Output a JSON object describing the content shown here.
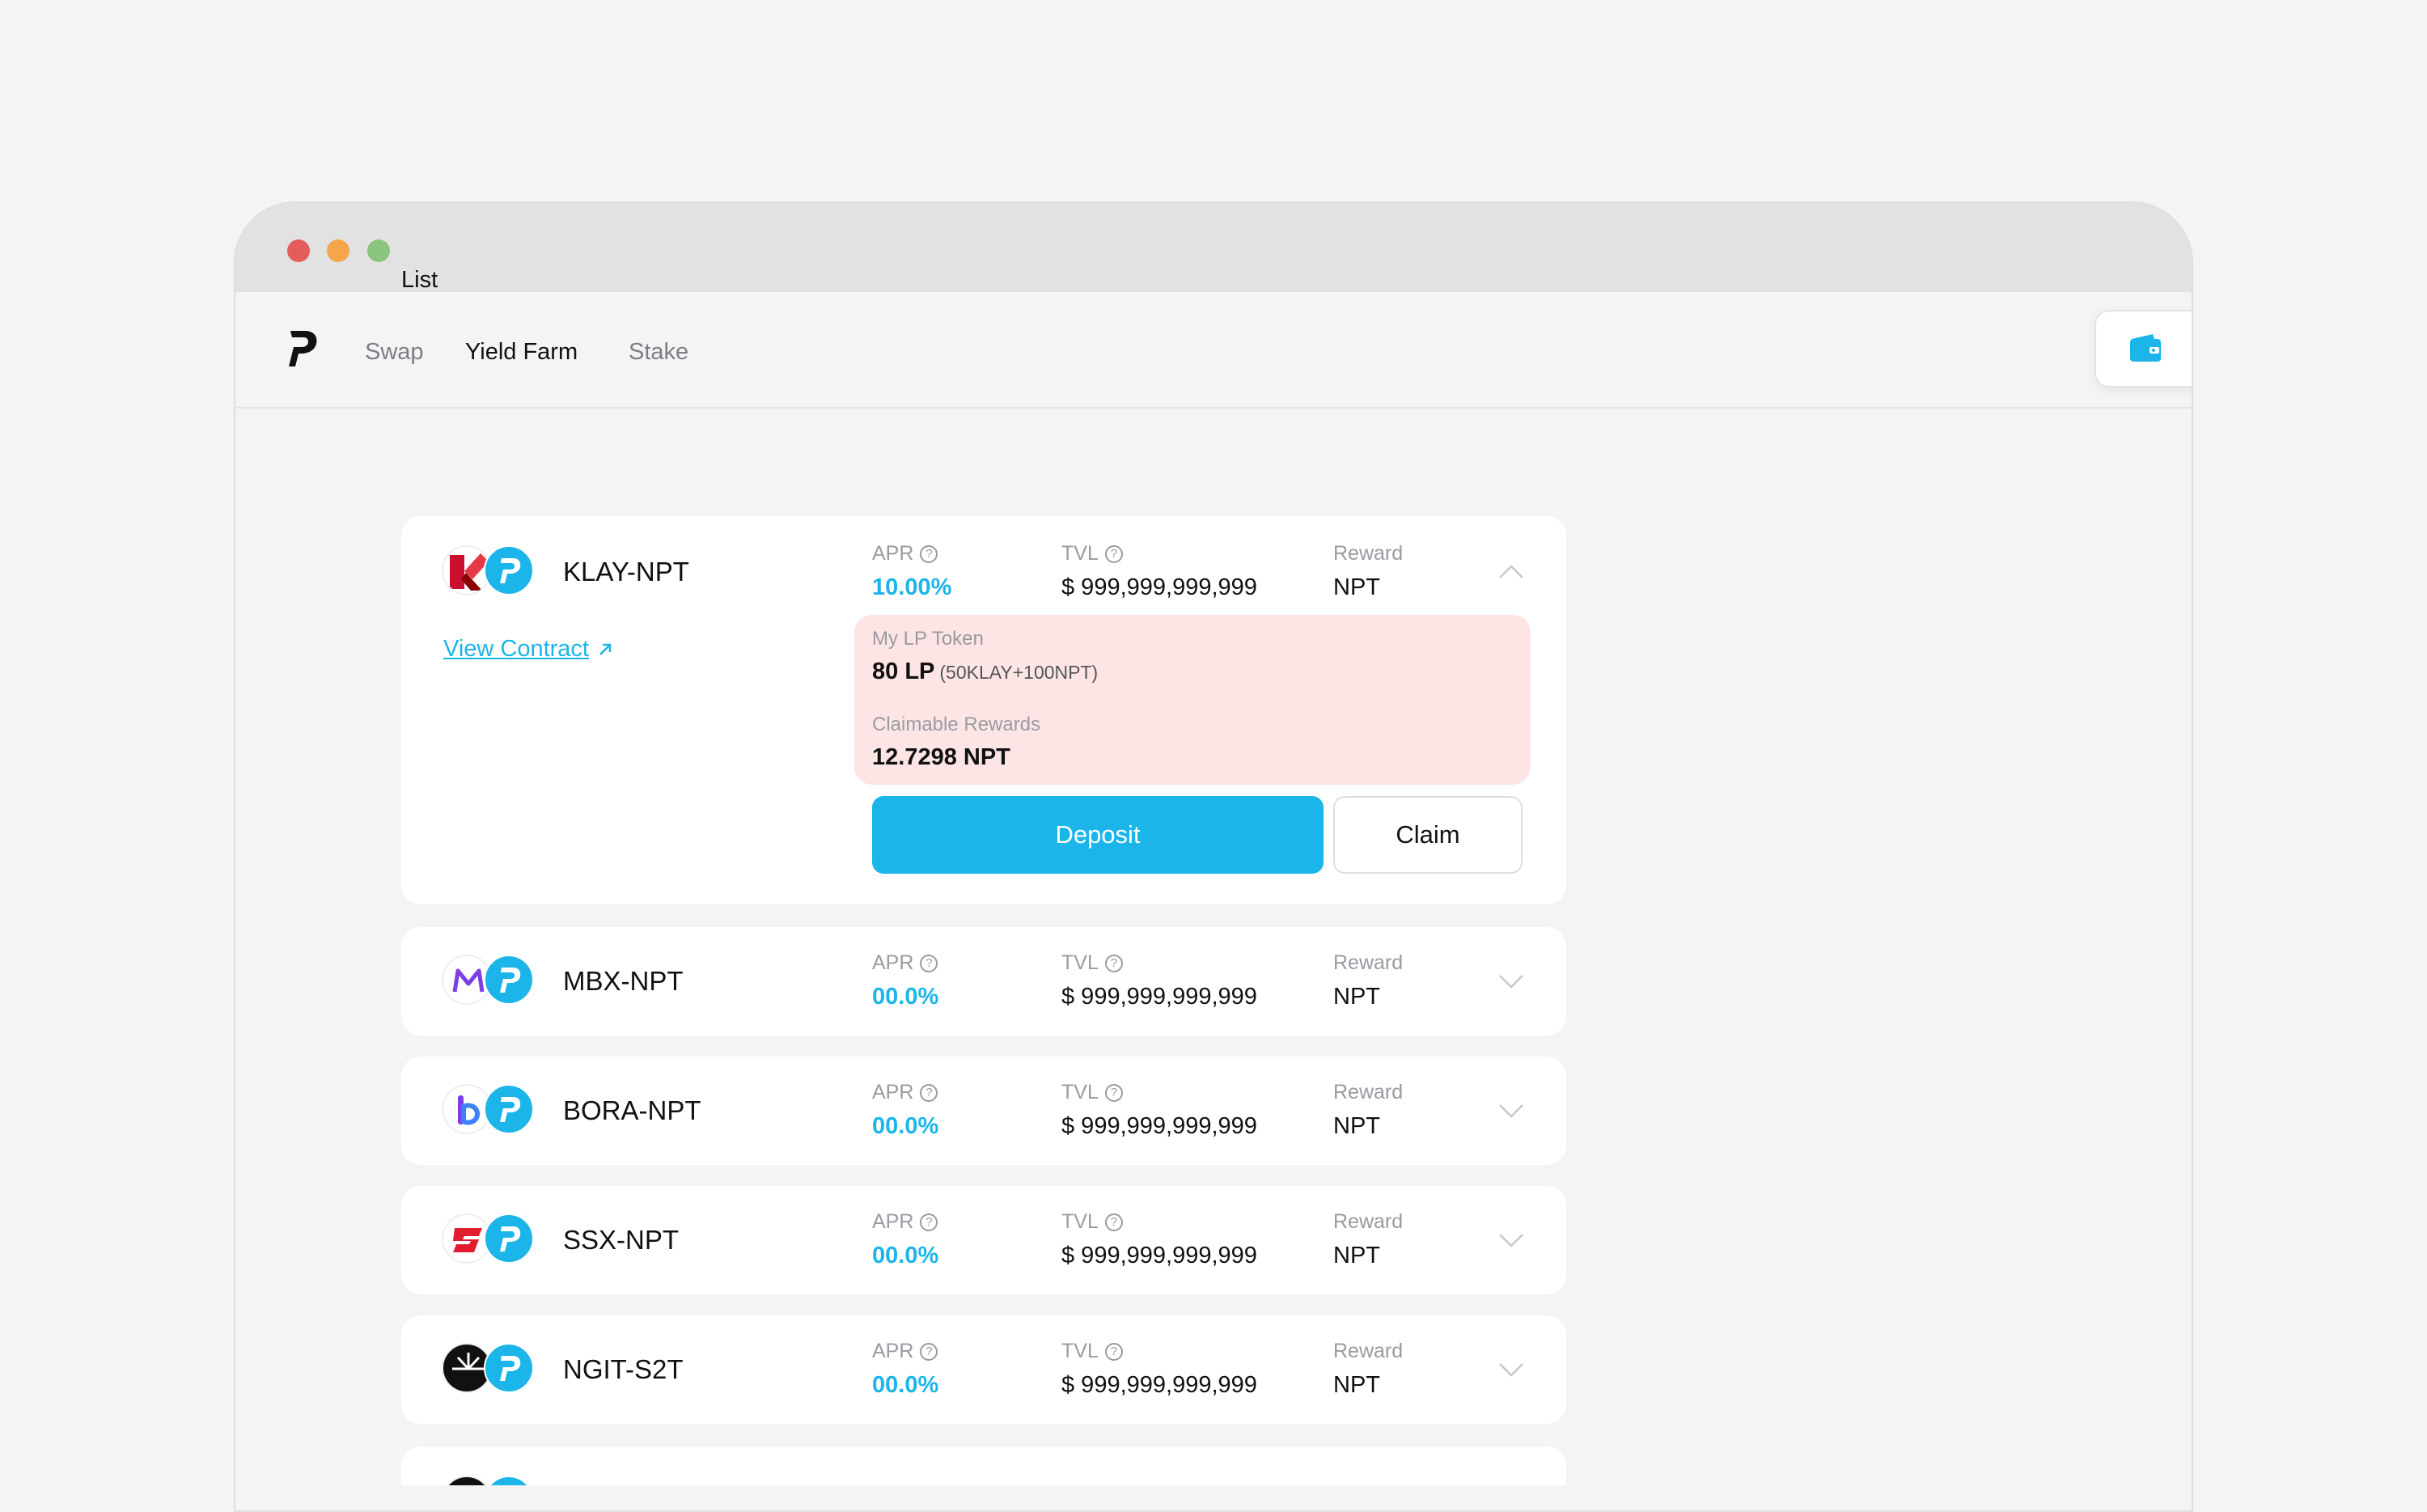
{
  "nav": {
    "items": [
      {
        "label": "Swap",
        "active": false
      },
      {
        "label": "Yield Farm",
        "active": true
      },
      {
        "label": "Stake",
        "active": false
      }
    ]
  },
  "list_title": "List",
  "labels": {
    "apr": "APR",
    "tvl": "TVL",
    "reward": "Reward",
    "view_contract": "View Contract",
    "my_lp_token": "My LP Token",
    "claimable_rewards": "Claimable Rewards",
    "deposit": "Deposit",
    "claim": "Claim"
  },
  "farms": [
    {
      "pair": "KLAY-NPT",
      "apr": "10.00%",
      "tvl": "$ 999,999,999,999",
      "reward": "NPT",
      "expanded": true,
      "lp_amount": "80 LP",
      "lp_detail": "(50KLAY+100NPT)",
      "claimable": "12.7298 NPT"
    },
    {
      "pair": "MBX-NPT",
      "apr": "00.0%",
      "tvl": "$ 999,999,999,999",
      "reward": "NPT",
      "expanded": false
    },
    {
      "pair": "BORA-NPT",
      "apr": "00.0%",
      "tvl": "$ 999,999,999,999",
      "reward": "NPT",
      "expanded": false
    },
    {
      "pair": "SSX-NPT",
      "apr": "00.0%",
      "tvl": "$ 999,999,999,999",
      "reward": "NPT",
      "expanded": false
    },
    {
      "pair": "NGIT-S2T",
      "apr": "00.0%",
      "tvl": "$ 999,999,999,999",
      "reward": "NPT",
      "expanded": false
    }
  ],
  "colors": {
    "accent": "#1cb5ea",
    "lp_box": "#fde5e5"
  }
}
